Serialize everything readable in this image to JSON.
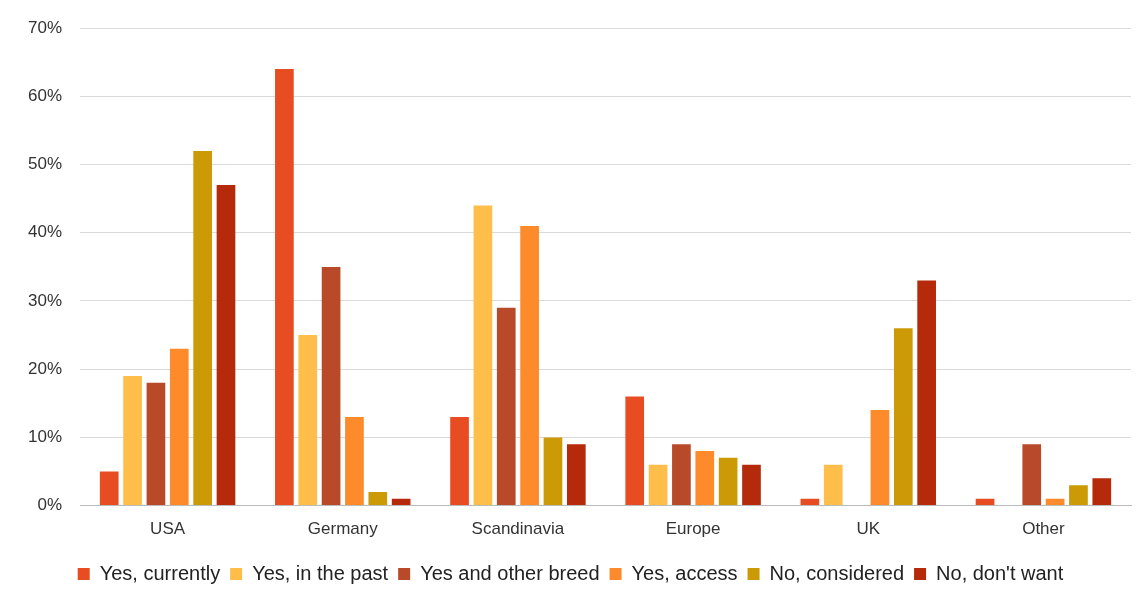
{
  "chart_data": {
    "type": "bar",
    "categories": [
      "USA",
      "Germany",
      "Scandinavia",
      "Europe",
      "UK",
      "Other"
    ],
    "series": [
      {
        "name": "Yes, currently",
        "color": "#e84c22",
        "values": [
          5,
          64,
          13,
          16,
          1,
          1
        ]
      },
      {
        "name": "Yes, in the past",
        "color": "#ffbd4a",
        "values": [
          19,
          25,
          44,
          6,
          6,
          0
        ]
      },
      {
        "name": "Yes and other breed",
        "color": "#b84a2a",
        "values": [
          18,
          35,
          29,
          9,
          0,
          9
        ]
      },
      {
        "name": "Yes, access",
        "color": "#fd8a2b",
        "values": [
          23,
          13,
          41,
          8,
          14,
          1
        ]
      },
      {
        "name": "No, considered",
        "color": "#cc9a06",
        "values": [
          52,
          2,
          10,
          7,
          26,
          3
        ]
      },
      {
        "name": "No, don't want",
        "color": "#b52a0a",
        "values": [
          47,
          1,
          9,
          6,
          33,
          4
        ]
      }
    ],
    "ylim": [
      0,
      70
    ],
    "yticks": [
      {
        "value": 0,
        "label": "0%"
      },
      {
        "value": 10,
        "label": "10%"
      },
      {
        "value": 20,
        "label": "20%"
      },
      {
        "value": 30,
        "label": "30%"
      },
      {
        "value": 40,
        "label": "40%"
      },
      {
        "value": 50,
        "label": "50%"
      },
      {
        "value": 60,
        "label": "60%"
      },
      {
        "value": 70,
        "label": "70%"
      }
    ],
    "grid": "y",
    "legend": "bottom"
  }
}
